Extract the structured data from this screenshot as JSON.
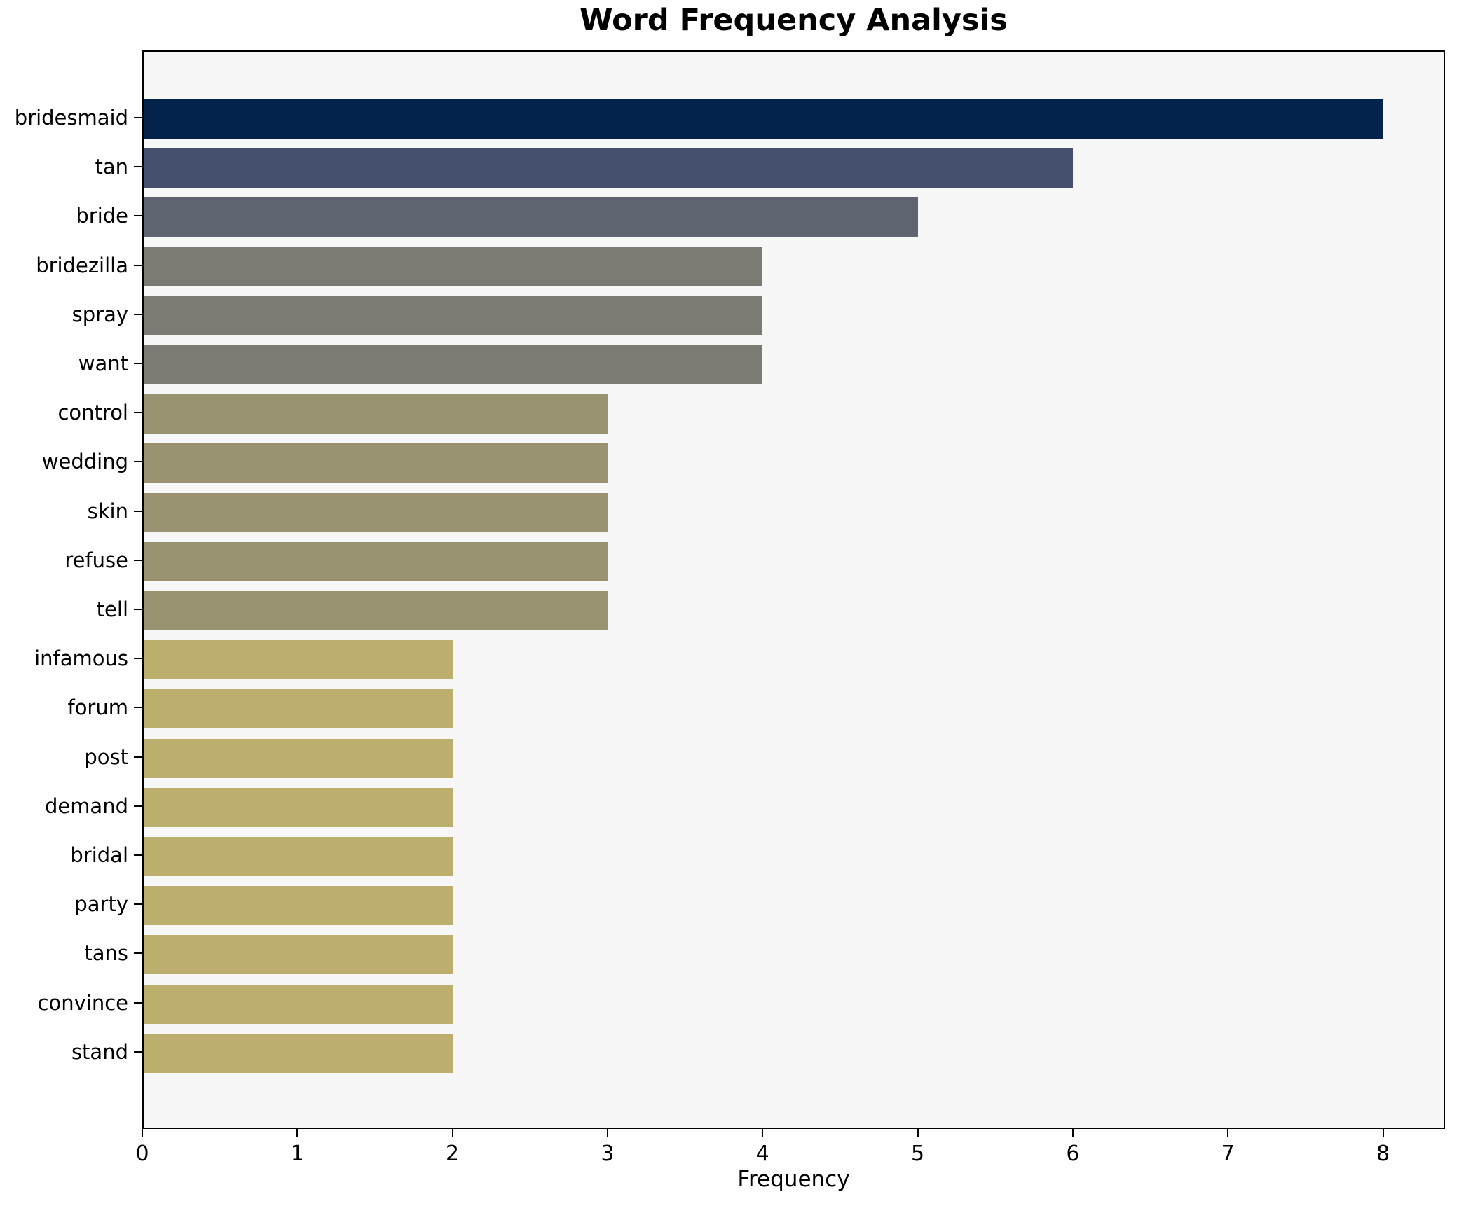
{
  "chart_data": {
    "type": "bar",
    "orientation": "horizontal",
    "title": "Word Frequency Analysis",
    "xlabel": "Frequency",
    "ylabel": "",
    "categories": [
      "bridesmaid",
      "tan",
      "bride",
      "bridezilla",
      "spray",
      "want",
      "control",
      "wedding",
      "skin",
      "refuse",
      "tell",
      "infamous",
      "forum",
      "post",
      "demand",
      "bridal",
      "party",
      "tans",
      "convince",
      "stand"
    ],
    "values": [
      8,
      6,
      5,
      4,
      4,
      4,
      3,
      3,
      3,
      3,
      3,
      2,
      2,
      2,
      2,
      2,
      2,
      2,
      2,
      2
    ],
    "x_ticks": [
      0,
      1,
      2,
      3,
      4,
      5,
      6,
      7,
      8
    ],
    "xlim": [
      0,
      8.4
    ],
    "grid": false,
    "legend": "none",
    "plot_background": "#f7f7f7",
    "figure_background": "#ffffff",
    "spine_color": "#000000",
    "color_by_value": {
      "8": "#03224c",
      "6": "#45506e",
      "5": "#5e6470",
      "4": "#7b7a73",
      "3": "#9a9372",
      "2": "#bcaf6e"
    }
  }
}
